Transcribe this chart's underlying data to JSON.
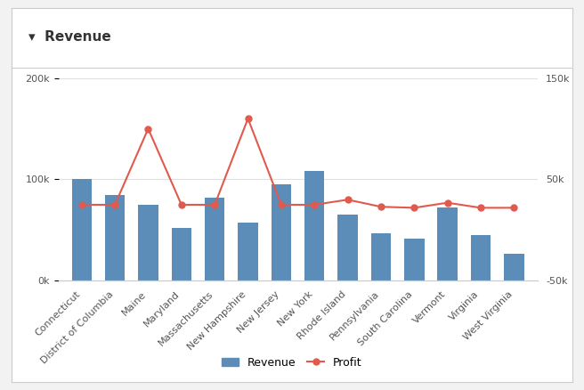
{
  "title": "Revenue",
  "title_marker": "▾",
  "categories": [
    "Connecticut",
    "District of Columbia",
    "Maine",
    "Maryland",
    "Massachusetts",
    "New Hampshire",
    "New Jersey",
    "New York",
    "Rhode Island",
    "Pennsylvania",
    "South Carolina",
    "Vermont",
    "Virginia",
    "West Virginia"
  ],
  "revenue": [
    100000,
    85000,
    75000,
    52000,
    82000,
    57000,
    95000,
    108000,
    65000,
    47000,
    42000,
    72000,
    45000,
    27000
  ],
  "profit": [
    25000,
    25000,
    100000,
    25000,
    25000,
    110000,
    25000,
    25000,
    30000,
    23000,
    22000,
    27000,
    22000,
    22000
  ],
  "bar_color": "#5b8db8",
  "line_color": "#e05a4e",
  "marker_color": "#e05a4e",
  "bg_outer": "#f2f2f2",
  "bg_inner": "#ffffff",
  "border_color": "#cccccc",
  "grid_color": "#e0e0e0",
  "text_color": "#555555",
  "left_ylim": [
    0,
    200000
  ],
  "right_ylim": [
    -50000,
    150000
  ],
  "left_yticks": [
    0,
    100000,
    200000
  ],
  "left_yticklabels": [
    "0k",
    "100k",
    "200k"
  ],
  "right_yticks": [
    -50000,
    50000,
    150000
  ],
  "right_yticklabels": [
    "-50k",
    "50k",
    "150k"
  ],
  "legend_revenue": "Revenue",
  "legend_profit": "Profit",
  "title_fontsize": 11,
  "tick_fontsize": 8,
  "legend_fontsize": 9
}
